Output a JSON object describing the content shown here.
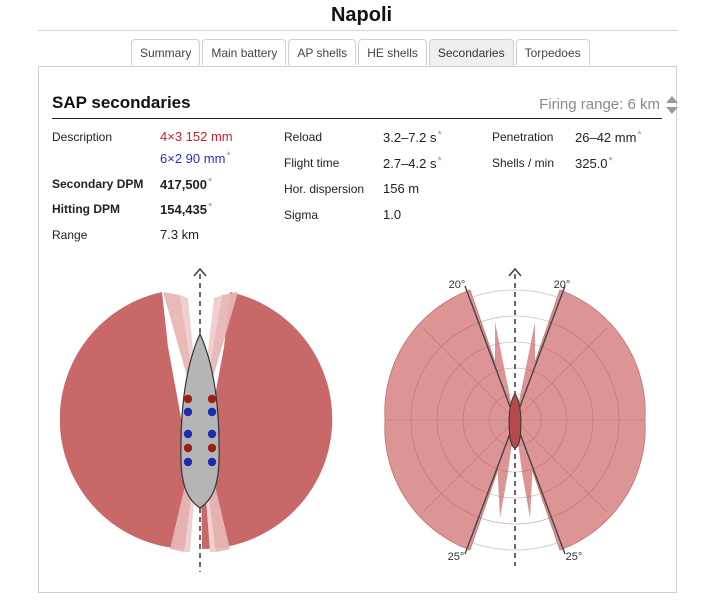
{
  "ship": {
    "name": "Napoli"
  },
  "tabs": [
    {
      "label": "Summary"
    },
    {
      "label": "Main battery"
    },
    {
      "label": "AP shells"
    },
    {
      "label": "HE shells"
    },
    {
      "label": "Secondaries"
    },
    {
      "label": "Torpedoes"
    }
  ],
  "active_tab": "Secondaries",
  "section": {
    "title": "SAP secondaries",
    "firing_range_label": "Firing range: 6 km",
    "asterisk": "*"
  },
  "stats": {
    "description_label": "Description",
    "description_line1": "4×3 152 mm",
    "description_line2": "6×2 90 mm",
    "secondary_dpm_label": "Secondary DPM",
    "secondary_dpm": "417,500",
    "hitting_dpm_label": "Hitting DPM",
    "hitting_dpm": "154,435",
    "range_label": "Range",
    "range": "7.3 km",
    "reload_label": "Reload",
    "reload": "3.2–7.2 s",
    "flight_time_label": "Flight time",
    "flight_time": "2.7–4.2 s",
    "hor_dispersion_label": "Hor. dispersion",
    "hor_dispersion": "156 m",
    "sigma_label": "Sigma",
    "sigma": "1.0",
    "penetration_label": "Penetration",
    "penetration": "26–42 mm",
    "shells_per_min_label": "Shells / min",
    "shells_per_min": "325.0"
  },
  "angle_labels": {
    "top_left": "20°",
    "top_right": "20°",
    "bottom_left": "25°",
    "bottom_right": "25°"
  },
  "colors": {
    "coverage_fill": "#c96868",
    "polar_fill": "#dd9494",
    "red_mount": "#a01c1c",
    "blue_mount": "#1c2ab4",
    "hull": "#b5b5b5"
  }
}
